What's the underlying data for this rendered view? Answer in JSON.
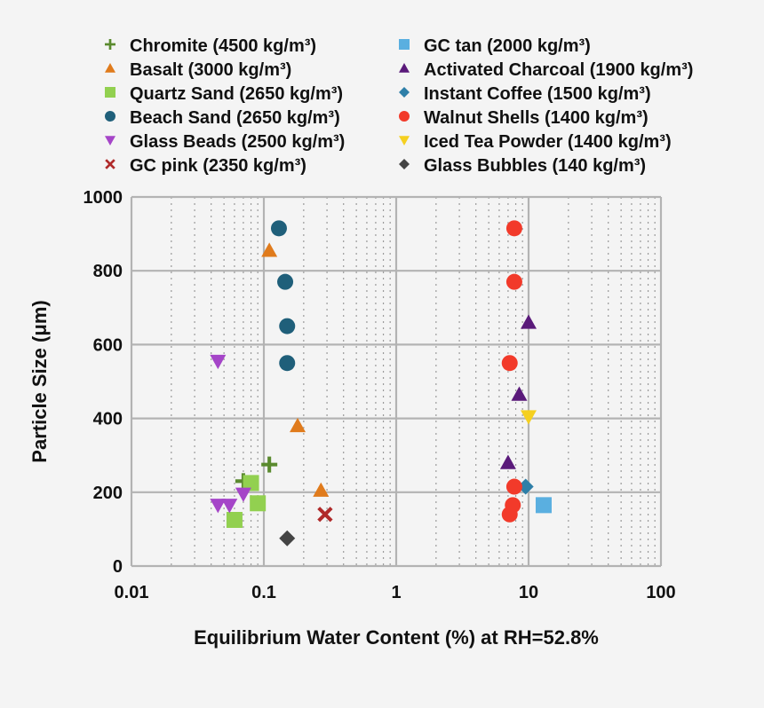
{
  "chart_data": {
    "type": "scatter",
    "title": "",
    "xlabel": "Equilibrium Water Content (%) at RH=52.8%",
    "ylabel": "Particle Size (μm)",
    "xscale": "log",
    "xlim": [
      0.01,
      100
    ],
    "ylim": [
      0,
      1000
    ],
    "xticks": [
      "0.01",
      "0.1",
      "1",
      "10",
      "100"
    ],
    "yticks": [
      "0",
      "200",
      "400",
      "600",
      "800",
      "1000"
    ],
    "grid": true,
    "legend_position": "top",
    "series": [
      {
        "name": "Chromite (4500 kg/m³)",
        "marker": "plus",
        "color": "#5a8a2e",
        "points": [
          [
            0.07,
            230
          ],
          [
            0.11,
            275
          ]
        ]
      },
      {
        "name": "Basalt (3000 kg/m³)",
        "marker": "triangle-up",
        "color": "#e07b1c",
        "points": [
          [
            0.11,
            855
          ],
          [
            0.18,
            380
          ],
          [
            0.27,
            205
          ]
        ]
      },
      {
        "name": "Quartz Sand (2650 kg/m³)",
        "marker": "square",
        "color": "#92d050",
        "points": [
          [
            0.06,
            125
          ],
          [
            0.08,
            225
          ],
          [
            0.09,
            170
          ]
        ]
      },
      {
        "name": "Beach Sand (2650 kg/m³)",
        "marker": "circle",
        "color": "#1f5f7a",
        "points": [
          [
            0.13,
            915
          ],
          [
            0.145,
            770
          ],
          [
            0.15,
            650
          ],
          [
            0.15,
            550
          ]
        ]
      },
      {
        "name": "Glass Beads (2500 kg/m³)",
        "marker": "triangle-down",
        "color": "#a545c8",
        "points": [
          [
            0.045,
            555
          ],
          [
            0.045,
            165
          ],
          [
            0.055,
            165
          ],
          [
            0.07,
            195
          ]
        ]
      },
      {
        "name": "GC pink (2350 kg/m³)",
        "marker": "x",
        "color": "#b02a2a",
        "points": [
          [
            0.29,
            140
          ]
        ]
      },
      {
        "name": "GC tan (2000 kg/m³)",
        "marker": "square",
        "color": "#5aafe0",
        "points": [
          [
            13,
            165
          ]
        ]
      },
      {
        "name": "Activated Charcoal (1900 kg/m³)",
        "marker": "triangle-up",
        "color": "#5a1a7a",
        "points": [
          [
            10,
            660
          ],
          [
            8.5,
            465
          ],
          [
            7,
            280
          ]
        ]
      },
      {
        "name": "Instant Coffee (1500 kg/m³)",
        "marker": "diamond",
        "color": "#2e7fa8",
        "points": [
          [
            9.5,
            215
          ]
        ]
      },
      {
        "name": "Walnut Shells (1400 kg/m³)",
        "marker": "circle",
        "color": "#f23a2a",
        "points": [
          [
            7.8,
            915
          ],
          [
            7.8,
            770
          ],
          [
            7.2,
            550
          ],
          [
            7.8,
            215
          ],
          [
            7.6,
            165
          ],
          [
            7.2,
            140
          ]
        ]
      },
      {
        "name": "Iced Tea Powder (1400 kg/m³)",
        "marker": "triangle-down",
        "color": "#f5d020",
        "points": [
          [
            10,
            405
          ]
        ]
      },
      {
        "name": "Glass Bubbles (140 kg/m³)",
        "marker": "diamond",
        "color": "#444444",
        "points": [
          [
            0.15,
            75
          ]
        ]
      }
    ]
  }
}
